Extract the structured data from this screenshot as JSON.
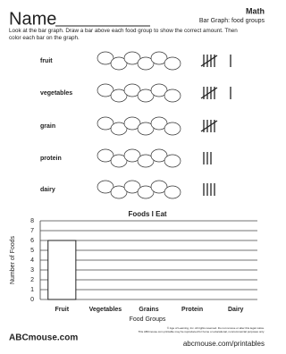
{
  "header": {
    "title": "Name",
    "subject": "Math",
    "subtitle": "Bar Graph: food groups"
  },
  "instructions": "Look at the bar graph. Draw a bar above each food group to show the correct amount. Then color each bar on the graph.",
  "foods": [
    {
      "label": "fruit",
      "tally": 6
    },
    {
      "label": "vegetables",
      "tally": 6
    },
    {
      "label": "grain",
      "tally": 5
    },
    {
      "label": "protein",
      "tally": 3
    },
    {
      "label": "dairy",
      "tally": 4
    }
  ],
  "chart_data": {
    "type": "bar",
    "title": "Foods I Eat",
    "categories": [
      "Fruit",
      "Vegetables",
      "Grains",
      "Protein",
      "Dairy"
    ],
    "values": [
      6,
      null,
      null,
      null,
      null
    ],
    "ylim": [
      0,
      8
    ],
    "yticks": [
      0,
      1,
      2,
      3,
      4,
      5,
      6,
      7,
      8
    ],
    "x_label": "Food Groups",
    "y_label": "Number of Foods",
    "grid": true
  },
  "footer": {
    "logo": "ABCmouse.com",
    "legal": "© Age of Learning, Inc. All rights reserved. Do not remove or alter this legal notice.",
    "legal2": "This ABCmouse.com printable may be reproduced for home or educational, noncommercial purposes only.",
    "url": "abcmouse.com/printables"
  }
}
